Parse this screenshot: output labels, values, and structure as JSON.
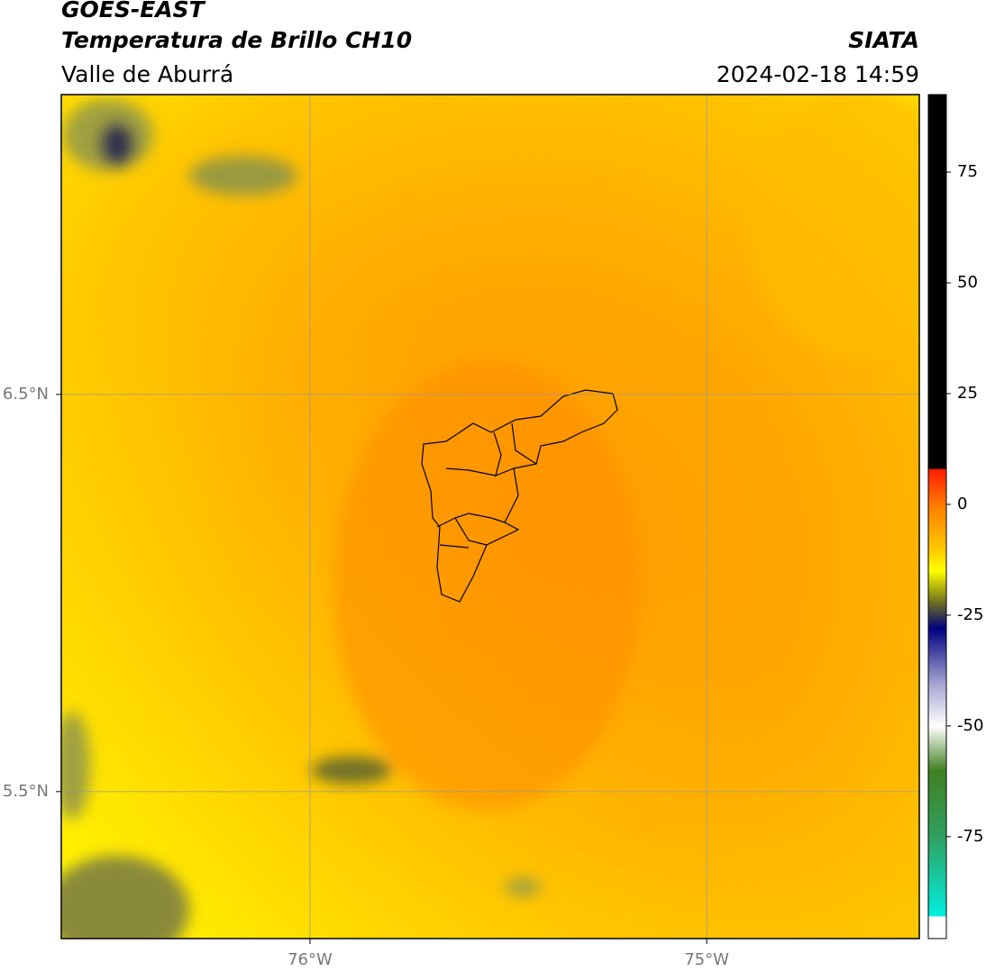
{
  "header": {
    "title": "GOES-EAST",
    "subtitle": "Temperatura de Brillo CH10",
    "region": "Valle de Aburrá",
    "source": "SIATA",
    "datetime": "2024-02-18 14:59"
  },
  "map": {
    "xlim": [
      -76.627,
      -74.464
    ],
    "ylim": [
      5.13,
      7.255
    ],
    "xticks": [
      {
        "value": -76,
        "label": "76°W"
      },
      {
        "value": -75,
        "label": "75°W"
      }
    ],
    "yticks": [
      {
        "value": 6.5,
        "label": "6.5°N"
      },
      {
        "value": 5.5,
        "label": "5.5°N"
      }
    ],
    "grid": true
  },
  "colorbar": {
    "lim": [
      -98,
      92.5
    ],
    "ticks": [
      75,
      50,
      25,
      0,
      -25,
      -50,
      -75
    ],
    "stops": [
      [
        92.5,
        "#000000"
      ],
      [
        8,
        "#000000"
      ],
      [
        8,
        "#ff1a00"
      ],
      [
        0,
        "#ff7a00"
      ],
      [
        -10,
        "#ffc800"
      ],
      [
        -15,
        "#ffff00"
      ],
      [
        -22,
        "#707020"
      ],
      [
        -28,
        "#000080"
      ],
      [
        -40,
        "#a0a0d0"
      ],
      [
        -50,
        "#ffffff"
      ],
      [
        -60,
        "#408020"
      ],
      [
        -75,
        "#30a060"
      ],
      [
        -93,
        "#00f0e0"
      ],
      [
        -93,
        "#ffffff"
      ],
      [
        -98,
        "#ffffff"
      ]
    ]
  }
}
